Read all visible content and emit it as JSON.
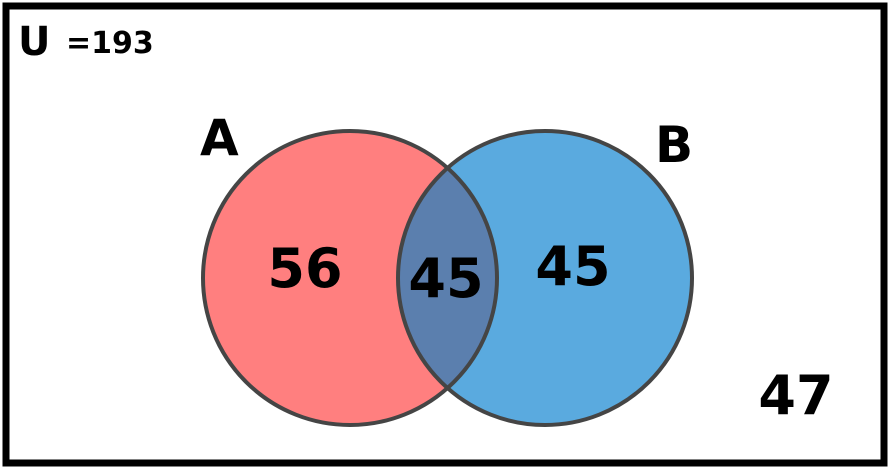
{
  "universe": {
    "symbol": "U",
    "total_text": "=193"
  },
  "sets": {
    "a": {
      "label": "A",
      "only_count": "56",
      "fill": "#ff7f7f"
    },
    "b": {
      "label": "B",
      "only_count": "45",
      "fill": "#5aaadf"
    }
  },
  "intersection": {
    "count": "45",
    "fill": "#5b7fae"
  },
  "outside": {
    "count": "47"
  },
  "colors": {
    "outline": "#454545",
    "frame": "#000000"
  }
}
